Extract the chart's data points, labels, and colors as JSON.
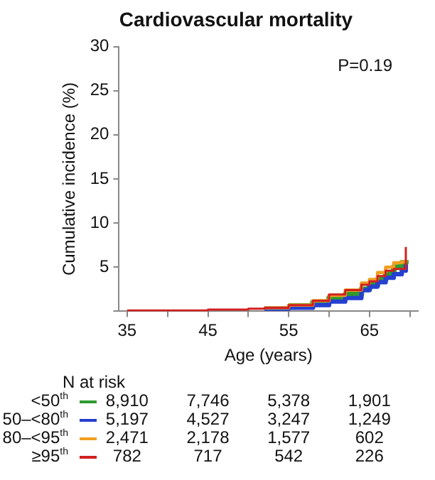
{
  "chart_data": {
    "type": "step",
    "title": "Cardiovascular mortality",
    "xlabel": "Age (years)",
    "ylabel": "Cumulative incidence (%)",
    "x": [
      35,
      40,
      45,
      50,
      52,
      55,
      58,
      60,
      62,
      64,
      65,
      66,
      67,
      68,
      69,
      69.5
    ],
    "series": [
      {
        "name": "<50$^{th}$",
        "color": "#2e9a2e",
        "values": [
          null,
          null,
          null,
          null,
          null,
          0.6,
          1.0,
          1.5,
          1.9,
          2.5,
          3.0,
          3.6,
          4.3,
          5.0,
          5.5,
          5.8
        ]
      },
      {
        "name": "50–<80$^{th}$",
        "color": "#2540d0",
        "values": [
          null,
          null,
          null,
          null,
          0.3,
          0.4,
          0.7,
          1.1,
          1.5,
          2.4,
          2.8,
          3.3,
          3.8,
          4.2,
          4.6,
          5.3
        ]
      },
      {
        "name": "80–<95$^{th}$",
        "color": "#f0a020",
        "values": [
          null,
          null,
          null,
          null,
          0.4,
          0.7,
          1.2,
          1.8,
          2.4,
          3.2,
          3.6,
          4.4,
          5.0,
          5.5,
          5.6,
          5.8
        ]
      },
      {
        "name": "≥95$^{th}$",
        "color": "#d02020",
        "values": [
          0.1,
          0.1,
          0.2,
          0.3,
          0.4,
          0.7,
          1.2,
          1.9,
          2.4,
          3.0,
          3.4,
          4.0,
          4.6,
          4.8,
          4.8,
          7.3
        ]
      }
    ],
    "xlim": [
      34,
      71
    ],
    "xticks": [
      35,
      {
        "value": 40,
        "label": null
      },
      45,
      {
        "value": 50,
        "label": null
      },
      55,
      {
        "value": 60,
        "label": null
      },
      65,
      {
        "value": 70,
        "label": null
      }
    ],
    "ylim": [
      0,
      30
    ],
    "yticks": [
      {
        "value": 0,
        "label": null
      },
      5,
      10,
      15,
      20,
      25,
      30
    ],
    "grid": false,
    "legend": "bottom",
    "marker": "none",
    "line_style": "solid",
    "annotations": [
      "P=0.19",
      "N at risk",
      "8,910",
      "7,746",
      "5,378",
      "1,901",
      "5,197",
      "4,527",
      "3,247",
      "1,249",
      "2,471",
      "2,178",
      "1,577",
      "602",
      "782",
      "717",
      "542",
      "226"
    ]
  }
}
